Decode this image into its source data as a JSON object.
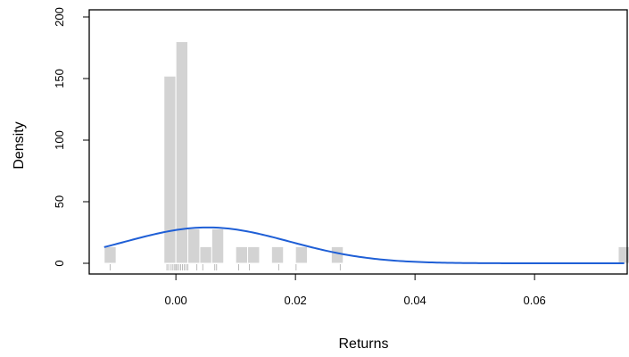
{
  "chart_data": {
    "type": "bar",
    "xlabel": "Returns",
    "ylabel": "Density",
    "xlim": [
      -0.0145,
      0.0755
    ],
    "ylim": [
      0,
      200
    ],
    "x_ticks": [
      {
        "value": 0.0,
        "label": "0.00"
      },
      {
        "value": 0.02,
        "label": "0.02"
      },
      {
        "value": 0.04,
        "label": "0.04"
      },
      {
        "value": 0.06,
        "label": "0.06"
      }
    ],
    "y_ticks": [
      {
        "value": 0,
        "label": "0"
      },
      {
        "value": 50,
        "label": "50"
      },
      {
        "value": 100,
        "label": "100"
      },
      {
        "value": 150,
        "label": "150"
      },
      {
        "value": 200,
        "label": "200"
      }
    ],
    "series": [
      {
        "kind": "histogram",
        "bin_width": 0.002,
        "bins": [
          {
            "x0": -0.012,
            "x1": -0.01,
            "density": 13.5
          },
          {
            "x0": -0.002,
            "x1": 0.0,
            "density": 152
          },
          {
            "x0": 0.0,
            "x1": 0.002,
            "density": 180
          },
          {
            "x0": 0.002,
            "x1": 0.004,
            "density": 28
          },
          {
            "x0": 0.004,
            "x1": 0.006,
            "density": 13.5
          },
          {
            "x0": 0.006,
            "x1": 0.008,
            "density": 28
          },
          {
            "x0": 0.01,
            "x1": 0.012,
            "density": 13.5
          },
          {
            "x0": 0.012,
            "x1": 0.014,
            "density": 13.5
          },
          {
            "x0": 0.016,
            "x1": 0.018,
            "density": 13.5
          },
          {
            "x0": 0.02,
            "x1": 0.022,
            "density": 13.5
          },
          {
            "x0": 0.026,
            "x1": 0.028,
            "density": 13.5
          },
          {
            "x0": 0.074,
            "x1": 0.076,
            "density": 13.5
          }
        ],
        "color": "#d3d3d3"
      },
      {
        "kind": "normal_density_curve",
        "mean": 0.0053,
        "sd": 0.0137,
        "x_range": [
          -0.012,
          0.075
        ],
        "color": "#1f5fd6"
      },
      {
        "kind": "rug",
        "values": [
          -0.011,
          -0.0015,
          -0.0012,
          -0.0008,
          -0.0005,
          -0.0002,
          0.0,
          0.0002,
          0.0005,
          0.0008,
          0.0011,
          0.0014,
          0.0017,
          0.002,
          0.0035,
          0.0045,
          0.0065,
          0.0068,
          0.0105,
          0.0123,
          0.0172,
          0.0201,
          0.0275,
          0.0755
        ],
        "color": "#bbbbbb"
      }
    ],
    "grid": false,
    "legend": "none"
  }
}
